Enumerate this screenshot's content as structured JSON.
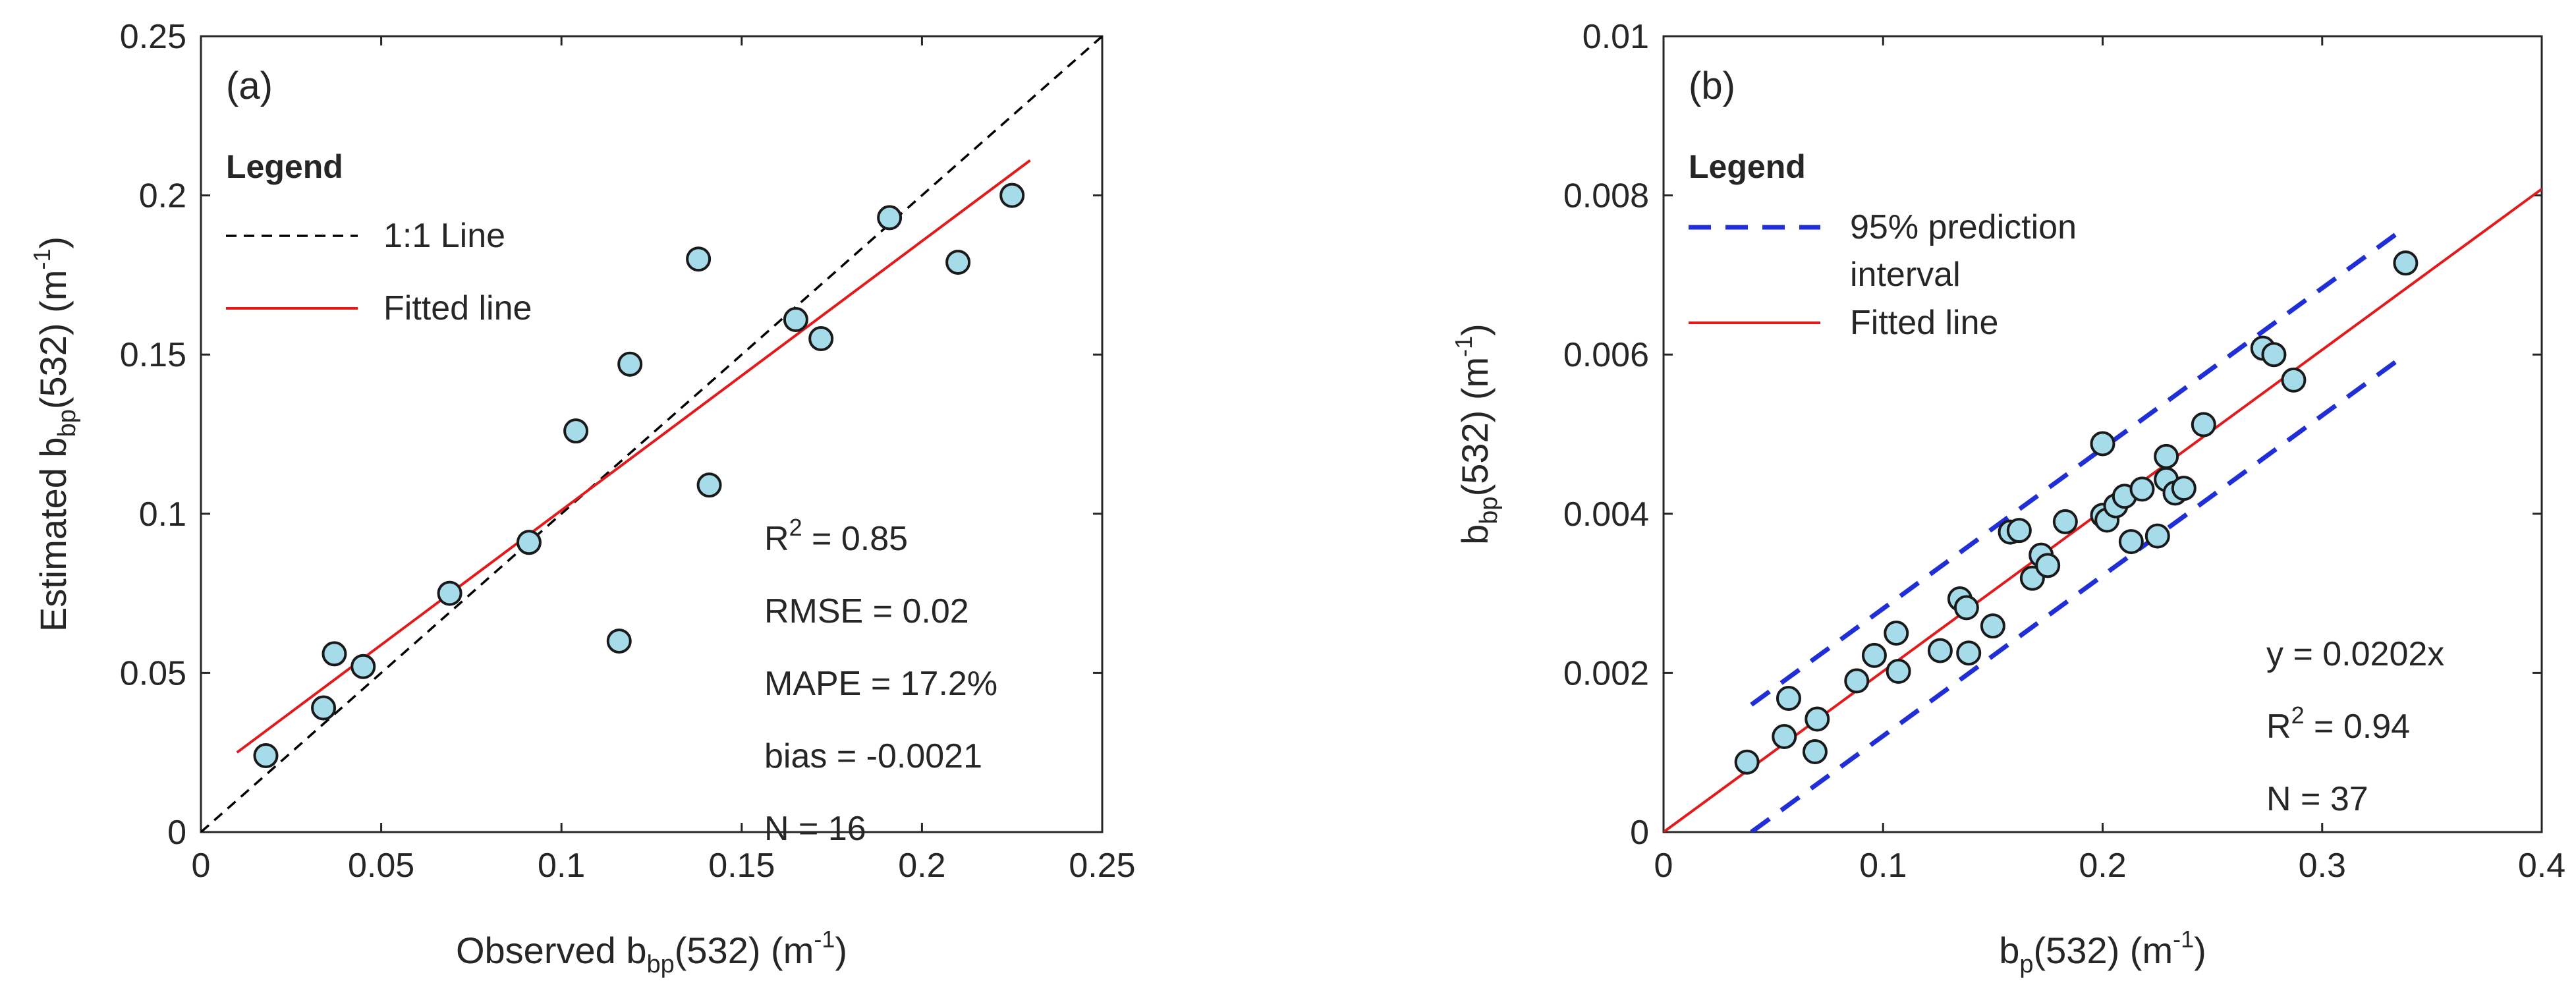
{
  "chart_data": [
    {
      "panel": "(a)",
      "type": "scatter",
      "xlabel": {
        "main": "Observed b",
        "sub": "bp",
        "rest": "(532) (m",
        "sup": "-1",
        "end": ")"
      },
      "ylabel": {
        "main": "Estimated b",
        "sub": "bp",
        "rest": "(532) (m",
        "sup": "-1",
        "end": ")"
      },
      "xlim": [
        0,
        0.25
      ],
      "ylim": [
        0,
        0.25
      ],
      "xticks": [
        "0",
        "0.05",
        "0.1",
        "0.15",
        "0.2",
        "0.25"
      ],
      "yticks": [
        "0",
        "0.05",
        "0.1",
        "0.15",
        "0.2",
        "0.25"
      ],
      "legend": {
        "title": "Legend",
        "entries": [
          {
            "label": "1:1 Line",
            "style": "dashed",
            "color": "#000000"
          },
          {
            "label": "Fitted line",
            "style": "solid",
            "color": "#e31a1c"
          }
        ]
      },
      "points": [
        {
          "x": 0.018,
          "y": 0.024
        },
        {
          "x": 0.034,
          "y": 0.039
        },
        {
          "x": 0.037,
          "y": 0.056
        },
        {
          "x": 0.045,
          "y": 0.052
        },
        {
          "x": 0.069,
          "y": 0.075
        },
        {
          "x": 0.091,
          "y": 0.091
        },
        {
          "x": 0.104,
          "y": 0.126
        },
        {
          "x": 0.116,
          "y": 0.06
        },
        {
          "x": 0.119,
          "y": 0.147
        },
        {
          "x": 0.138,
          "y": 0.18
        },
        {
          "x": 0.141,
          "y": 0.109
        },
        {
          "x": 0.165,
          "y": 0.161
        },
        {
          "x": 0.172,
          "y": 0.155
        },
        {
          "x": 0.191,
          "y": 0.193
        },
        {
          "x": 0.21,
          "y": 0.179
        },
        {
          "x": 0.225,
          "y": 0.2
        }
      ],
      "one_to_one": {
        "x": [
          0,
          0.25
        ],
        "y": [
          0,
          0.25
        ]
      },
      "fitted_line": {
        "x": [
          0.01,
          0.23
        ],
        "y": [
          0.025,
          0.211
        ]
      },
      "stats": [
        {
          "base": "R",
          "sup": "2",
          "rest": " = 0.85"
        },
        {
          "base": "RMSE = 0.02",
          "sup": "",
          "rest": ""
        },
        {
          "base": "MAPE = 17.2%",
          "sup": "",
          "rest": ""
        },
        {
          "base": "bias = -0.0021",
          "sup": "",
          "rest": ""
        },
        {
          "base": "N = 16",
          "sup": "",
          "rest": ""
        }
      ],
      "colors": {
        "marker_fill": "#a6dcea",
        "marker_edge": "#1a1a1a"
      }
    },
    {
      "panel": "(b)",
      "type": "scatter",
      "xlabel": {
        "main": "b",
        "sub": "p",
        "rest": "(532) (m",
        "sup": "-1",
        "end": ")"
      },
      "ylabel": {
        "main": "b",
        "sub": "bp",
        "rest": "(532) (m",
        "sup": "-1",
        "end": ")"
      },
      "xlim": [
        0,
        0.4
      ],
      "ylim": [
        0,
        0.01
      ],
      "xticks": [
        "0",
        "0.1",
        "0.2",
        "0.3",
        "0.4"
      ],
      "yticks": [
        "0",
        "0.002",
        "0.004",
        "0.006",
        "0.008",
        "0.01"
      ],
      "legend": {
        "title": "Legend",
        "entries": [
          {
            "label": "95% prediction",
            "label2": "interval",
            "style": "dashed",
            "color": "#1f2ed6"
          },
          {
            "label": "Fitted line",
            "style": "solid",
            "color": "#e31a1c"
          }
        ]
      },
      "points": [
        {
          "x": 0.038,
          "y": 0.00088
        },
        {
          "x": 0.055,
          "y": 0.0012
        },
        {
          "x": 0.057,
          "y": 0.00168
        },
        {
          "x": 0.069,
          "y": 0.00101
        },
        {
          "x": 0.07,
          "y": 0.00142
        },
        {
          "x": 0.088,
          "y": 0.0019
        },
        {
          "x": 0.096,
          "y": 0.00222
        },
        {
          "x": 0.106,
          "y": 0.0025
        },
        {
          "x": 0.107,
          "y": 0.00202
        },
        {
          "x": 0.126,
          "y": 0.00228
        },
        {
          "x": 0.135,
          "y": 0.00293
        },
        {
          "x": 0.138,
          "y": 0.00282
        },
        {
          "x": 0.139,
          "y": 0.00225
        },
        {
          "x": 0.15,
          "y": 0.00259
        },
        {
          "x": 0.158,
          "y": 0.00377
        },
        {
          "x": 0.162,
          "y": 0.00379
        },
        {
          "x": 0.168,
          "y": 0.00319
        },
        {
          "x": 0.172,
          "y": 0.00348
        },
        {
          "x": 0.175,
          "y": 0.00335
        },
        {
          "x": 0.183,
          "y": 0.0039
        },
        {
          "x": 0.2,
          "y": 0.00488
        },
        {
          "x": 0.2,
          "y": 0.00398
        },
        {
          "x": 0.202,
          "y": 0.00392
        },
        {
          "x": 0.206,
          "y": 0.0041
        },
        {
          "x": 0.21,
          "y": 0.00422
        },
        {
          "x": 0.213,
          "y": 0.00365
        },
        {
          "x": 0.218,
          "y": 0.00431
        },
        {
          "x": 0.225,
          "y": 0.00372
        },
        {
          "x": 0.229,
          "y": 0.00472
        },
        {
          "x": 0.229,
          "y": 0.00443
        },
        {
          "x": 0.233,
          "y": 0.00426
        },
        {
          "x": 0.237,
          "y": 0.00432
        },
        {
          "x": 0.246,
          "y": 0.00512
        },
        {
          "x": 0.273,
          "y": 0.00608
        },
        {
          "x": 0.278,
          "y": 0.006
        },
        {
          "x": 0.287,
          "y": 0.00568
        },
        {
          "x": 0.338,
          "y": 0.00715
        }
      ],
      "fitted_line": {
        "x": [
          0,
          0.4
        ],
        "y": [
          0,
          0.00808
        ]
      },
      "prediction_upper": {
        "x": [
          0.04,
          0.338
        ],
        "y": [
          0.0016,
          0.0076
        ]
      },
      "prediction_lower": {
        "x": [
          0.04,
          0.338
        ],
        "y": [
          0.0,
          0.006
        ]
      },
      "stats": [
        {
          "base": "y = 0.0202x",
          "sup": "",
          "rest": ""
        },
        {
          "base": "R",
          "sup": "2",
          "rest": " = 0.94"
        },
        {
          "base": "N = 37",
          "sup": "",
          "rest": ""
        }
      ],
      "colors": {
        "marker_fill": "#a6dcea",
        "marker_edge": "#1a1a1a"
      }
    }
  ]
}
